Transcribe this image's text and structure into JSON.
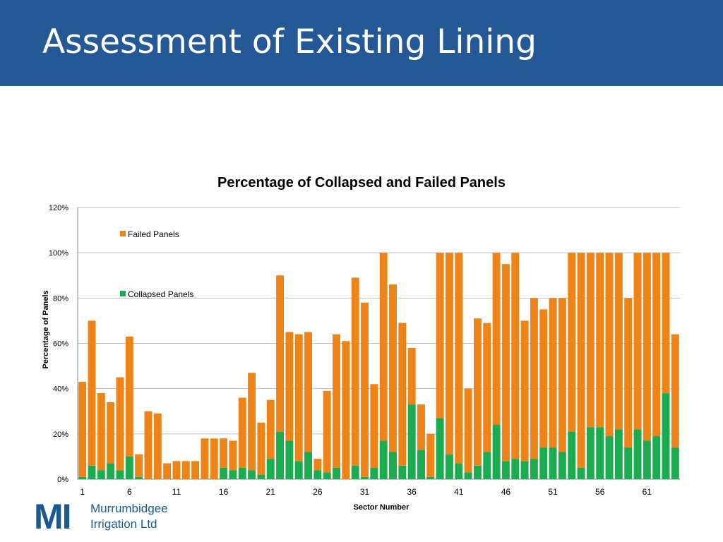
{
  "slide": {
    "title": "Assessment of Existing Lining",
    "header_color": "#245896"
  },
  "logo": {
    "mark": "MI",
    "line1": "Murrumbidgee",
    "line2": "Irrigation Ltd",
    "color": "#1a5a8e"
  },
  "chart_data": {
    "type": "bar",
    "stacked": true,
    "title": "Percentage of Collapsed and Failed Panels",
    "xlabel": "Sector Number",
    "ylabel": "Percentage of Panels",
    "ylim": [
      0,
      120
    ],
    "y_ticks": [
      "0%",
      "20%",
      "40%",
      "60%",
      "80%",
      "100%",
      "120%"
    ],
    "x_tick_labels": [
      "1",
      "6",
      "11",
      "16",
      "21",
      "26",
      "31",
      "36",
      "41",
      "46",
      "51",
      "56",
      "61"
    ],
    "grid": true,
    "legend_position": "top-left",
    "categories": [
      1,
      2,
      3,
      4,
      5,
      6,
      7,
      8,
      9,
      10,
      11,
      12,
      13,
      14,
      15,
      16,
      17,
      18,
      19,
      20,
      21,
      22,
      23,
      24,
      25,
      26,
      27,
      28,
      29,
      30,
      31,
      32,
      33,
      34,
      35,
      36,
      37,
      38,
      39,
      40,
      41,
      42,
      43,
      44,
      45,
      46,
      47,
      48,
      49,
      50,
      51,
      52,
      53,
      54,
      55,
      56,
      57,
      58,
      59,
      60,
      61,
      62,
      63,
      64
    ],
    "series": [
      {
        "name": "Collapsed Panels",
        "color": "#1cac50",
        "values": [
          1,
          6,
          4,
          7,
          4,
          10,
          1,
          0,
          0,
          0,
          0,
          0,
          0,
          0,
          0,
          5,
          4,
          5,
          4,
          2,
          9,
          21,
          17,
          8,
          12,
          4,
          3,
          5,
          0,
          6,
          1,
          5,
          17,
          12,
          6,
          33,
          13,
          1,
          27,
          11,
          7,
          3,
          6,
          12,
          24,
          8,
          9,
          8,
          9,
          14,
          14,
          12,
          21,
          5,
          23,
          23,
          19,
          22,
          14,
          22,
          17,
          19,
          38,
          14
        ]
      },
      {
        "name": "Failed Panels",
        "color": "#ee8417",
        "values": [
          42,
          64,
          34,
          27,
          41,
          53,
          10,
          30,
          29,
          7,
          8,
          8,
          8,
          18,
          18,
          13,
          13,
          31,
          43,
          23,
          26,
          69,
          48,
          56,
          53,
          5,
          36,
          59,
          61,
          83,
          77,
          37,
          83,
          74,
          63,
          25,
          20,
          19,
          73,
          89,
          93,
          37,
          65,
          57,
          76,
          87,
          91,
          62,
          71,
          61,
          66,
          68,
          79,
          95,
          77,
          77,
          81,
          78,
          66,
          78,
          83,
          81,
          62,
          50
        ]
      }
    ]
  }
}
